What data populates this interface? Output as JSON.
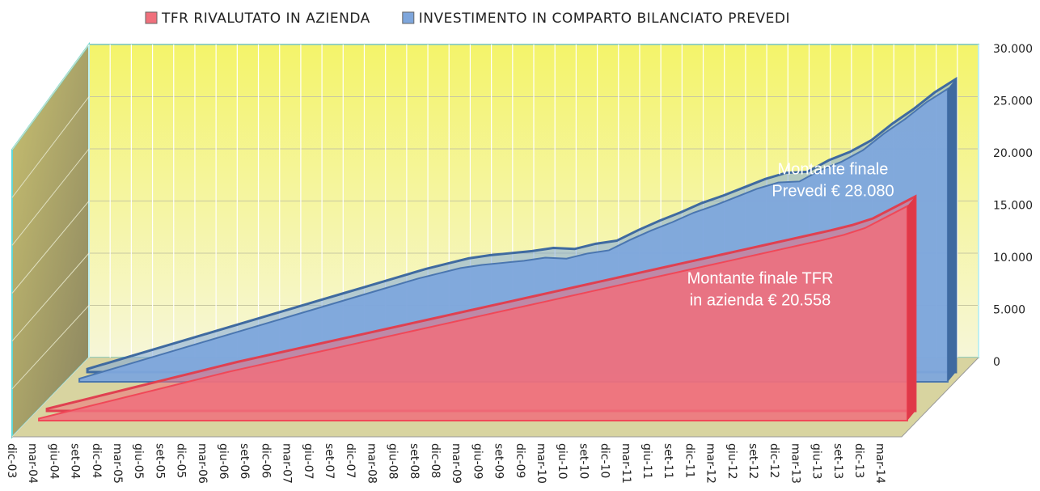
{
  "chart_data": {
    "type": "area3d",
    "categories": [
      "dic-03",
      "mar-04",
      "giu-04",
      "set-04",
      "dic-04",
      "mar-05",
      "giu-05",
      "set-05",
      "dic-05",
      "mar-06",
      "giu-06",
      "set-06",
      "dic-06",
      "mar-07",
      "giu-07",
      "set-07",
      "dic-07",
      "mar-08",
      "giu-08",
      "set-08",
      "dic-08",
      "mar-09",
      "giu-09",
      "set-09",
      "dic-09",
      "mar-10",
      "giu-10",
      "set-10",
      "dic-10",
      "mar-11",
      "giu-11",
      "set-11",
      "dic-11",
      "mar-12",
      "giu-12",
      "set-12",
      "dic-12",
      "mar-13",
      "giu-13",
      "set-13",
      "dic-13",
      "mar-14"
    ],
    "series": [
      {
        "name": "TFR RIVALUTATO IN AZIENDA",
        "color": "#f0707c",
        "values": [
          200,
          700,
          1200,
          1700,
          2200,
          2700,
          3200,
          3700,
          4200,
          4700,
          5150,
          5600,
          6050,
          6500,
          6950,
          7400,
          7850,
          8300,
          8750,
          9200,
          9650,
          10100,
          10550,
          11000,
          11450,
          11900,
          12350,
          12800,
          13250,
          13700,
          14150,
          14600,
          15050,
          15500,
          15950,
          16400,
          16850,
          17300,
          17800,
          18450,
          19500,
          20558
        ]
      },
      {
        "name": "INVESTIMENTO IN COMPARTO BILANCIATO PREVEDI",
        "color": "#7ea6dc",
        "values": [
          300,
          900,
          1500,
          2100,
          2700,
          3300,
          3900,
          4500,
          5100,
          5700,
          6300,
          6900,
          7500,
          8100,
          8700,
          9300,
          9900,
          10400,
          10900,
          11200,
          11400,
          11600,
          11900,
          11800,
          12300,
          12600,
          13600,
          14500,
          15300,
          16200,
          16900,
          17700,
          18500,
          19100,
          19200,
          20300,
          21100,
          22200,
          23800,
          25200,
          26800,
          28080
        ]
      }
    ],
    "ylim": [
      0,
      30000
    ],
    "yticks": [
      0,
      {
        "value": 5000,
        "label": "5.000"
      },
      {
        "value": 10000,
        "label": "10.000"
      },
      {
        "value": 15000,
        "label": "15.000"
      },
      {
        "value": 20000,
        "label": "20.000"
      },
      {
        "value": 25000,
        "label": "25.000"
      },
      {
        "value": 30000,
        "label": "30.000"
      }
    ],
    "grid": true,
    "legend": "top",
    "annotations": [
      [
        "Montante finale",
        "Prevedi € 28.080"
      ],
      [
        "Montante finale TFR",
        "in azienda € 20.558"
      ]
    ]
  }
}
